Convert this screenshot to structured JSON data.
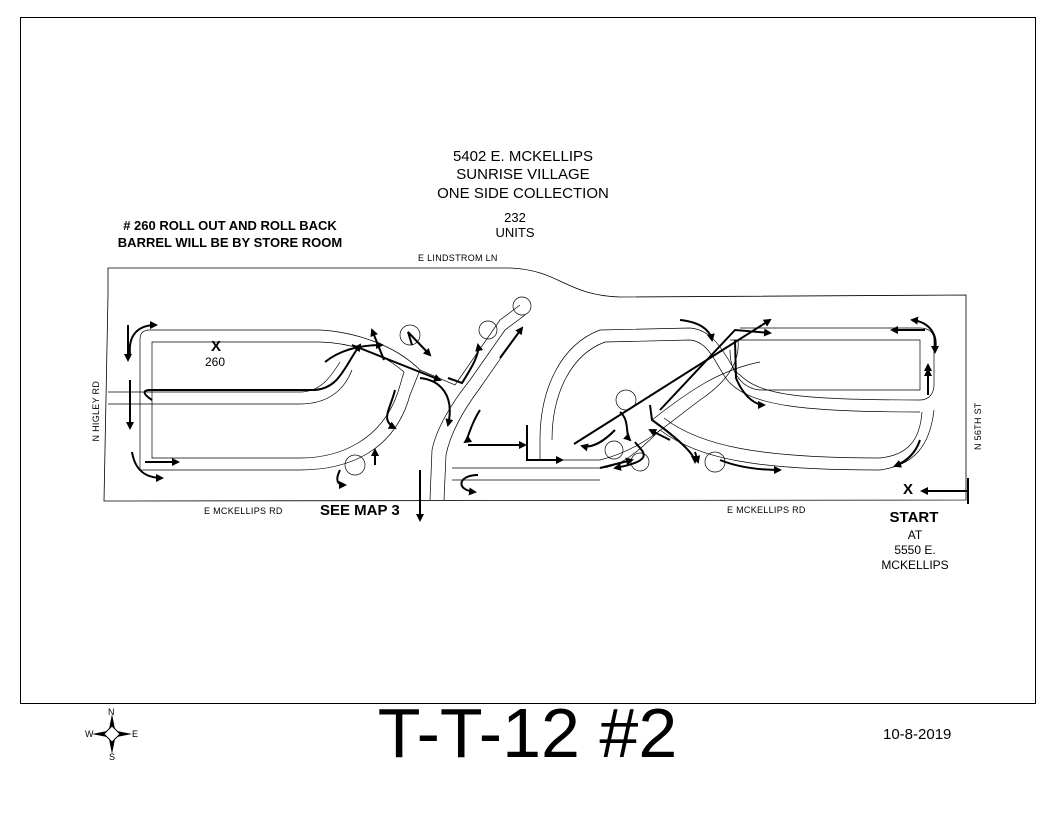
{
  "header": {
    "address": "5402 E. MCKELLIPS",
    "community": "SUNRISE VILLAGE",
    "collection": "ONE SIDE COLLECTION",
    "unit_count": "232",
    "unit_label": "UNITS"
  },
  "note": {
    "line1": "# 260 ROLL OUT AND ROLL BACK",
    "line2": "BARREL WILL BE BY STORE ROOM"
  },
  "streets": {
    "north": "E LINDSTROM LN",
    "south_west": "E MCKELLIPS RD",
    "south_east": "E MCKELLIPS RD",
    "west": "N HIGLEY RD",
    "east": "N 56TH ST"
  },
  "markers": {
    "unit_x": "X",
    "unit_number": "260",
    "start_x": "X",
    "see_map": "SEE MAP 3",
    "start_label": "START",
    "start_at": "AT",
    "start_address1": "5550 E.",
    "start_address2": "MCKELLIPS"
  },
  "compass": {
    "n": "N",
    "s": "S",
    "e": "E",
    "w": "W"
  },
  "footer": {
    "route_id": "T-T-12 #2",
    "date": "10-8-2019"
  }
}
